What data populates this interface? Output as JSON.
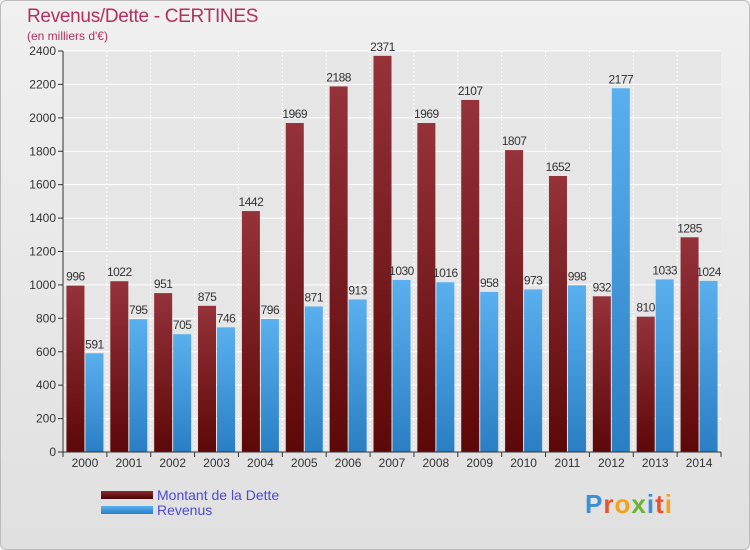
{
  "title": "Revenus/Dette - CERTINES",
  "subtitle": "(en milliers d'€)",
  "logo": [
    "P",
    "r",
    "o",
    "x",
    "i",
    "t",
    "i"
  ],
  "logo_colors": [
    "#3a8fd6",
    "#e8542d",
    "#f2a31b",
    "#6ab335",
    "#3a8fd6",
    "#e8542d",
    "#f2a31b"
  ],
  "chart_data": {
    "type": "bar",
    "categories": [
      "2000",
      "2001",
      "2002",
      "2003",
      "2004",
      "2005",
      "2006",
      "2007",
      "2008",
      "2009",
      "2010",
      "2011",
      "2012",
      "2013",
      "2014"
    ],
    "series": [
      {
        "name": "Montant de la Dette",
        "color": "#8b2a2e",
        "values": [
          996,
          1022,
          951,
          875,
          1442,
          1969,
          2188,
          2371,
          1969,
          2107,
          1807,
          1652,
          932,
          810,
          1285
        ]
      },
      {
        "name": "Revenus",
        "color": "#4ca6e6",
        "values": [
          591,
          795,
          705,
          746,
          796,
          871,
          913,
          1030,
          1016,
          958,
          973,
          998,
          2177,
          1033,
          1024
        ]
      }
    ],
    "ylim": [
      0,
      2400
    ],
    "yticks": [
      0,
      200,
      400,
      600,
      800,
      1000,
      1200,
      1400,
      1600,
      1800,
      2000,
      2200,
      2400
    ],
    "grid": true,
    "legend": "bottom-left"
  }
}
